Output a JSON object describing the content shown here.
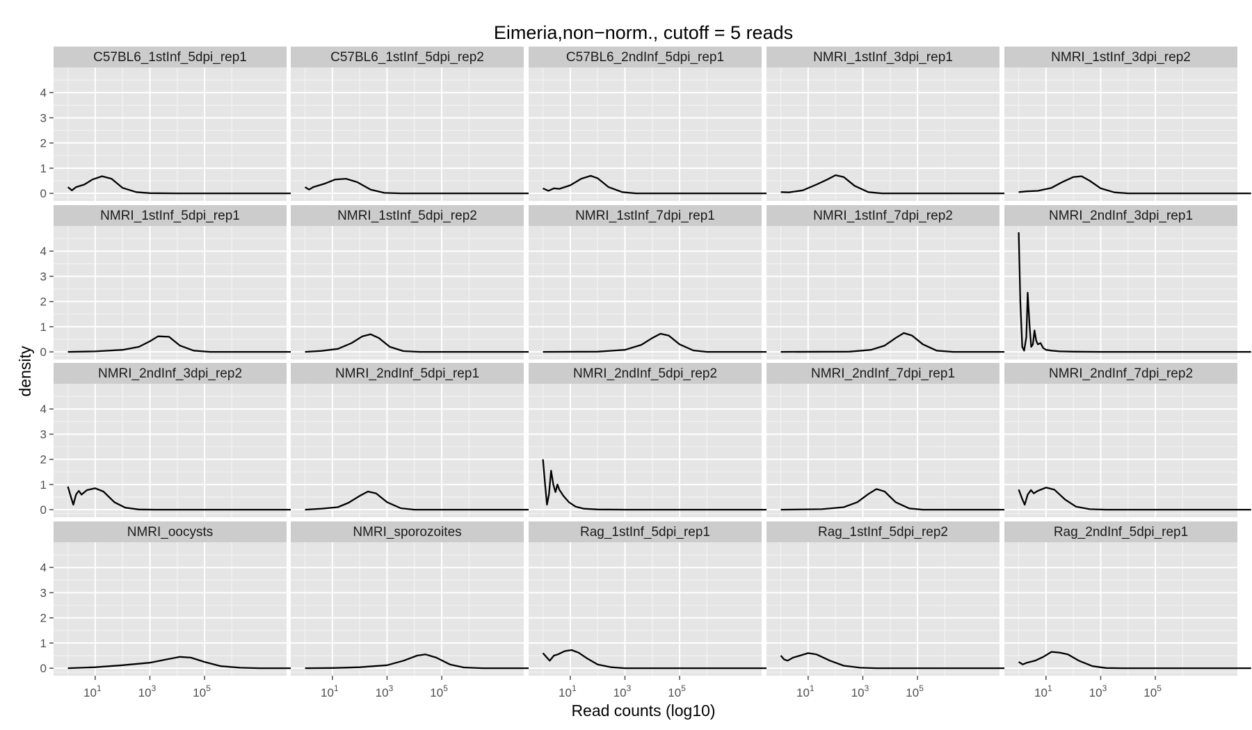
{
  "chart_data": {
    "type": "line",
    "chart_kind": "faceted density plot",
    "title": "Eimeria,non−norm., cutoff = 5 reads",
    "xlabel": "Read counts (log10)",
    "ylabel": "density",
    "x_scale": "log10",
    "x_range": [
      0.3,
      100000000
    ],
    "x_ticks": [
      10,
      1000,
      100000
    ],
    "x_tick_labels": [
      {
        "base": "10",
        "exp": "1"
      },
      {
        "base": "10",
        "exp": "3"
      },
      {
        "base": "10",
        "exp": "5"
      }
    ],
    "y_range": [
      -0.3,
      5.0
    ],
    "y_ticks": [
      0,
      1,
      2,
      3,
      4
    ],
    "y_tick_labels": [
      "0",
      "1",
      "2",
      "3",
      "4"
    ],
    "grid": true,
    "layout": {
      "rows": 4,
      "cols": 5
    },
    "colors": {
      "panel_bg": "#e5e5e5",
      "strip_bg": "#cccccc",
      "grid_major": "#ffffff",
      "grid_minor": "#f2f2f2",
      "line": "#000000"
    },
    "facets": [
      {
        "label": "C57BL6_1stInf_5dpi_rep1",
        "points": [
          [
            0.0,
            0.25
          ],
          [
            0.15,
            0.12
          ],
          [
            0.3,
            0.25
          ],
          [
            0.6,
            0.35
          ],
          [
            0.9,
            0.55
          ],
          [
            1.25,
            0.68
          ],
          [
            1.6,
            0.58
          ],
          [
            2.0,
            0.22
          ],
          [
            2.5,
            0.05
          ],
          [
            3.0,
            0.01
          ],
          [
            4.0,
            0.0
          ],
          [
            8.5,
            0.0
          ]
        ]
      },
      {
        "label": "C57BL6_1stInf_5dpi_rep2",
        "points": [
          [
            0.0,
            0.25
          ],
          [
            0.15,
            0.15
          ],
          [
            0.3,
            0.25
          ],
          [
            0.7,
            0.38
          ],
          [
            1.1,
            0.55
          ],
          [
            1.5,
            0.58
          ],
          [
            1.9,
            0.45
          ],
          [
            2.4,
            0.15
          ],
          [
            2.9,
            0.02
          ],
          [
            3.5,
            0.0
          ],
          [
            8.5,
            0.0
          ]
        ]
      },
      {
        "label": "C57BL6_2ndInf_5dpi_rep1",
        "points": [
          [
            0.0,
            0.2
          ],
          [
            0.2,
            0.1
          ],
          [
            0.4,
            0.2
          ],
          [
            0.6,
            0.18
          ],
          [
            1.0,
            0.32
          ],
          [
            1.4,
            0.58
          ],
          [
            1.75,
            0.7
          ],
          [
            2.0,
            0.6
          ],
          [
            2.4,
            0.25
          ],
          [
            2.9,
            0.05
          ],
          [
            3.4,
            0.0
          ],
          [
            8.5,
            0.0
          ]
        ]
      },
      {
        "label": "NMRI_1stInf_3dpi_rep1",
        "points": [
          [
            0.0,
            0.05
          ],
          [
            0.3,
            0.04
          ],
          [
            0.8,
            0.12
          ],
          [
            1.3,
            0.35
          ],
          [
            1.7,
            0.55
          ],
          [
            2.0,
            0.72
          ],
          [
            2.3,
            0.65
          ],
          [
            2.7,
            0.3
          ],
          [
            3.2,
            0.05
          ],
          [
            3.7,
            0.0
          ],
          [
            8.5,
            0.0
          ]
        ]
      },
      {
        "label": "NMRI_1stInf_3dpi_rep2",
        "points": [
          [
            0.0,
            0.05
          ],
          [
            0.3,
            0.08
          ],
          [
            0.7,
            0.1
          ],
          [
            1.2,
            0.22
          ],
          [
            1.6,
            0.45
          ],
          [
            2.0,
            0.65
          ],
          [
            2.3,
            0.68
          ],
          [
            2.6,
            0.5
          ],
          [
            3.0,
            0.2
          ],
          [
            3.5,
            0.04
          ],
          [
            4.0,
            0.0
          ],
          [
            8.5,
            0.0
          ]
        ]
      },
      {
        "label": "NMRI_1stInf_5dpi_rep1",
        "points": [
          [
            0.0,
            0.0
          ],
          [
            1.0,
            0.02
          ],
          [
            2.0,
            0.08
          ],
          [
            2.6,
            0.2
          ],
          [
            3.0,
            0.42
          ],
          [
            3.3,
            0.62
          ],
          [
            3.7,
            0.6
          ],
          [
            4.1,
            0.25
          ],
          [
            4.6,
            0.05
          ],
          [
            5.2,
            0.0
          ],
          [
            8.5,
            0.0
          ]
        ]
      },
      {
        "label": "NMRI_1stInf_5dpi_rep2",
        "points": [
          [
            0.0,
            0.0
          ],
          [
            0.6,
            0.04
          ],
          [
            1.2,
            0.12
          ],
          [
            1.7,
            0.35
          ],
          [
            2.1,
            0.62
          ],
          [
            2.4,
            0.7
          ],
          [
            2.7,
            0.55
          ],
          [
            3.1,
            0.2
          ],
          [
            3.6,
            0.03
          ],
          [
            4.2,
            0.0
          ],
          [
            8.5,
            0.0
          ]
        ]
      },
      {
        "label": "NMRI_1stInf_7dpi_rep1",
        "points": [
          [
            0.0,
            0.0
          ],
          [
            2.0,
            0.01
          ],
          [
            3.0,
            0.08
          ],
          [
            3.6,
            0.28
          ],
          [
            4.0,
            0.55
          ],
          [
            4.3,
            0.72
          ],
          [
            4.6,
            0.65
          ],
          [
            5.0,
            0.3
          ],
          [
            5.5,
            0.06
          ],
          [
            6.0,
            0.0
          ],
          [
            8.5,
            0.0
          ]
        ]
      },
      {
        "label": "NMRI_1stInf_7dpi_rep2",
        "points": [
          [
            0.0,
            0.0
          ],
          [
            2.5,
            0.01
          ],
          [
            3.3,
            0.08
          ],
          [
            3.8,
            0.25
          ],
          [
            4.2,
            0.55
          ],
          [
            4.5,
            0.75
          ],
          [
            4.8,
            0.65
          ],
          [
            5.2,
            0.3
          ],
          [
            5.7,
            0.05
          ],
          [
            6.3,
            0.0
          ],
          [
            8.5,
            0.0
          ]
        ]
      },
      {
        "label": "NMRI_2ndInf_3dpi_rep1",
        "points": [
          [
            0.0,
            4.75
          ],
          [
            0.06,
            2.0
          ],
          [
            0.13,
            0.2
          ],
          [
            0.2,
            0.05
          ],
          [
            0.28,
            0.6
          ],
          [
            0.33,
            2.35
          ],
          [
            0.4,
            1.0
          ],
          [
            0.46,
            0.2
          ],
          [
            0.52,
            0.3
          ],
          [
            0.58,
            0.85
          ],
          [
            0.64,
            0.45
          ],
          [
            0.7,
            0.3
          ],
          [
            0.8,
            0.35
          ],
          [
            0.9,
            0.15
          ],
          [
            1.0,
            0.08
          ],
          [
            1.2,
            0.05
          ],
          [
            1.5,
            0.02
          ],
          [
            2.0,
            0.01
          ],
          [
            3.0,
            0.0
          ],
          [
            8.5,
            0.0
          ]
        ]
      },
      {
        "label": "NMRI_2ndInf_3dpi_rep2",
        "points": [
          [
            0.0,
            0.92
          ],
          [
            0.1,
            0.55
          ],
          [
            0.2,
            0.2
          ],
          [
            0.3,
            0.6
          ],
          [
            0.4,
            0.75
          ],
          [
            0.5,
            0.6
          ],
          [
            0.7,
            0.78
          ],
          [
            1.0,
            0.85
          ],
          [
            1.3,
            0.72
          ],
          [
            1.7,
            0.3
          ],
          [
            2.1,
            0.08
          ],
          [
            2.6,
            0.01
          ],
          [
            3.2,
            0.0
          ],
          [
            8.5,
            0.0
          ]
        ]
      },
      {
        "label": "NMRI_2ndInf_5dpi_rep1",
        "points": [
          [
            0.0,
            0.0
          ],
          [
            0.6,
            0.04
          ],
          [
            1.2,
            0.1
          ],
          [
            1.6,
            0.28
          ],
          [
            2.0,
            0.55
          ],
          [
            2.3,
            0.72
          ],
          [
            2.6,
            0.65
          ],
          [
            3.0,
            0.3
          ],
          [
            3.5,
            0.06
          ],
          [
            4.0,
            0.0
          ],
          [
            8.5,
            0.0
          ]
        ]
      },
      {
        "label": "NMRI_2ndInf_5dpi_rep2",
        "points": [
          [
            0.0,
            2.0
          ],
          [
            0.08,
            1.0
          ],
          [
            0.15,
            0.2
          ],
          [
            0.22,
            0.6
          ],
          [
            0.3,
            1.55
          ],
          [
            0.38,
            1.0
          ],
          [
            0.46,
            0.7
          ],
          [
            0.53,
            1.0
          ],
          [
            0.6,
            0.8
          ],
          [
            0.75,
            0.55
          ],
          [
            0.95,
            0.3
          ],
          [
            1.2,
            0.12
          ],
          [
            1.5,
            0.04
          ],
          [
            2.0,
            0.01
          ],
          [
            3.0,
            0.0
          ],
          [
            8.5,
            0.0
          ]
        ]
      },
      {
        "label": "NMRI_2ndInf_7dpi_rep1",
        "points": [
          [
            0.0,
            0.0
          ],
          [
            1.5,
            0.02
          ],
          [
            2.3,
            0.1
          ],
          [
            2.8,
            0.3
          ],
          [
            3.2,
            0.62
          ],
          [
            3.5,
            0.82
          ],
          [
            3.8,
            0.72
          ],
          [
            4.2,
            0.3
          ],
          [
            4.7,
            0.05
          ],
          [
            5.2,
            0.0
          ],
          [
            8.5,
            0.0
          ]
        ]
      },
      {
        "label": "NMRI_2ndInf_7dpi_rep2",
        "points": [
          [
            0.0,
            0.8
          ],
          [
            0.12,
            0.45
          ],
          [
            0.22,
            0.2
          ],
          [
            0.33,
            0.6
          ],
          [
            0.45,
            0.78
          ],
          [
            0.55,
            0.65
          ],
          [
            0.7,
            0.75
          ],
          [
            1.0,
            0.88
          ],
          [
            1.3,
            0.8
          ],
          [
            1.7,
            0.4
          ],
          [
            2.1,
            0.12
          ],
          [
            2.6,
            0.02
          ],
          [
            3.2,
            0.0
          ],
          [
            8.5,
            0.0
          ]
        ]
      },
      {
        "label": "NMRI_oocysts",
        "points": [
          [
            0.0,
            0.0
          ],
          [
            1.0,
            0.04
          ],
          [
            2.0,
            0.12
          ],
          [
            3.0,
            0.22
          ],
          [
            3.6,
            0.35
          ],
          [
            4.1,
            0.45
          ],
          [
            4.5,
            0.42
          ],
          [
            5.0,
            0.25
          ],
          [
            5.6,
            0.08
          ],
          [
            6.3,
            0.02
          ],
          [
            7.0,
            0.0
          ],
          [
            8.5,
            0.0
          ]
        ]
      },
      {
        "label": "NMRI_sporozoites",
        "points": [
          [
            0.0,
            0.0
          ],
          [
            1.0,
            0.01
          ],
          [
            2.0,
            0.04
          ],
          [
            3.0,
            0.12
          ],
          [
            3.6,
            0.3
          ],
          [
            4.1,
            0.5
          ],
          [
            4.4,
            0.55
          ],
          [
            4.8,
            0.42
          ],
          [
            5.3,
            0.15
          ],
          [
            5.8,
            0.03
          ],
          [
            6.5,
            0.0
          ],
          [
            8.5,
            0.0
          ]
        ]
      },
      {
        "label": "Rag_1stInf_5dpi_rep1",
        "points": [
          [
            0.0,
            0.6
          ],
          [
            0.12,
            0.45
          ],
          [
            0.25,
            0.3
          ],
          [
            0.4,
            0.5
          ],
          [
            0.55,
            0.55
          ],
          [
            0.8,
            0.68
          ],
          [
            1.05,
            0.72
          ],
          [
            1.3,
            0.62
          ],
          [
            1.6,
            0.4
          ],
          [
            2.0,
            0.15
          ],
          [
            2.5,
            0.04
          ],
          [
            3.0,
            0.0
          ],
          [
            8.5,
            0.0
          ]
        ]
      },
      {
        "label": "Rag_1stInf_5dpi_rep2",
        "points": [
          [
            0.0,
            0.5
          ],
          [
            0.12,
            0.35
          ],
          [
            0.25,
            0.3
          ],
          [
            0.45,
            0.42
          ],
          [
            0.7,
            0.5
          ],
          [
            1.0,
            0.6
          ],
          [
            1.3,
            0.55
          ],
          [
            1.8,
            0.3
          ],
          [
            2.3,
            0.1
          ],
          [
            2.9,
            0.02
          ],
          [
            3.5,
            0.0
          ],
          [
            8.5,
            0.0
          ]
        ]
      },
      {
        "label": "Rag_2ndInf_5dpi_rep1",
        "points": [
          [
            0.0,
            0.25
          ],
          [
            0.15,
            0.15
          ],
          [
            0.3,
            0.22
          ],
          [
            0.6,
            0.3
          ],
          [
            0.9,
            0.45
          ],
          [
            1.2,
            0.65
          ],
          [
            1.5,
            0.62
          ],
          [
            1.8,
            0.55
          ],
          [
            2.2,
            0.3
          ],
          [
            2.7,
            0.08
          ],
          [
            3.2,
            0.01
          ],
          [
            3.8,
            0.0
          ],
          [
            8.5,
            0.0
          ]
        ]
      }
    ]
  }
}
